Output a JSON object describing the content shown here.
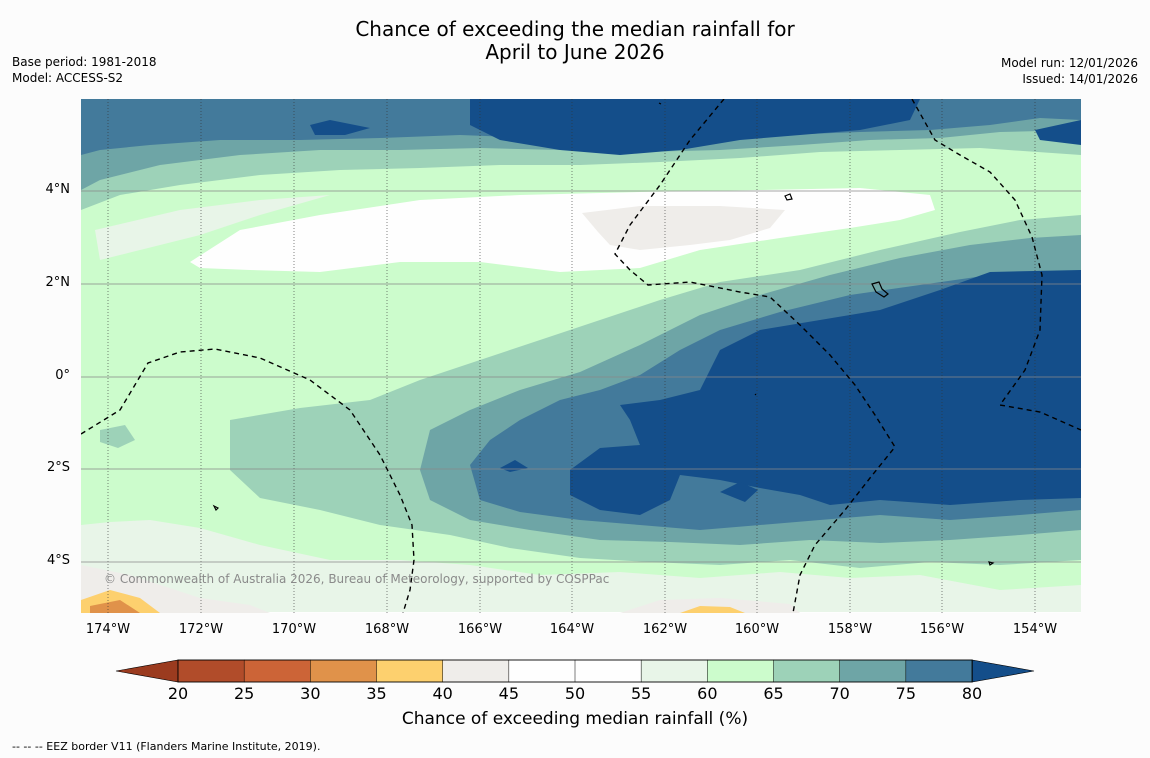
{
  "title": {
    "line1": "Chance of exceeding the median rainfall for",
    "line2": "April to June 2026"
  },
  "meta_left": {
    "base_period": "Base period: 1981-2018",
    "model": "Model: ACCESS-S2"
  },
  "meta_right": {
    "model_run": "Model run: 12/01/2026",
    "issued": "Issued: 14/01/2026"
  },
  "map": {
    "latitude_labels": [
      "4°N",
      "2°N",
      "0°",
      "2°S",
      "4°S"
    ],
    "longitude_labels": [
      "174°W",
      "172°W",
      "170°W",
      "168°W",
      "166°W",
      "164°W",
      "162°W",
      "160°W",
      "158°W",
      "156°W",
      "154°W"
    ],
    "copyright": "© Commonwealth of Australia 2026, Bureau of Meteorology, supported by COSPPac"
  },
  "colorbar": {
    "ticks": [
      "20",
      "25",
      "30",
      "35",
      "40",
      "45",
      "50",
      "55",
      "60",
      "65",
      "70",
      "75",
      "80"
    ],
    "colors": [
      "#b14c2a",
      "#cc6437",
      "#e0924a",
      "#fdd06e",
      "#efedea",
      "#fefefe",
      "#fefefe",
      "#e8f5e8",
      "#ccfccc",
      "#9dd2b8",
      "#6ea5a6",
      "#437a9b"
    ],
    "under_color": "#9b3b1f",
    "over_color": "#144e8a",
    "label": "Chance of exceeding median rainfall (%)"
  },
  "footnote": "--  --  -- EEZ border V11 (Flanders Marine Institute, 2019)."
}
